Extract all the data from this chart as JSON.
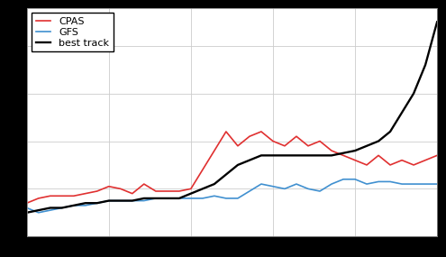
{
  "cpas": [
    7,
    8,
    8.5,
    8.5,
    8.5,
    9,
    9.5,
    10.5,
    10,
    9,
    11,
    9.5,
    9.5,
    9.5,
    10,
    14,
    18,
    22,
    19,
    21,
    22,
    20,
    19,
    21,
    19,
    20,
    18,
    17,
    16,
    15,
    17,
    15,
    16,
    15,
    16,
    17
  ],
  "gfs": [
    6,
    5,
    5.5,
    6,
    6.5,
    6.5,
    7,
    7.5,
    7.5,
    7.5,
    7.5,
    8,
    8,
    8,
    8,
    8,
    8.5,
    8,
    8,
    9.5,
    11,
    10.5,
    10,
    11,
    10,
    9.5,
    11,
    12,
    12,
    11,
    11.5,
    11.5,
    11,
    11,
    11,
    11
  ],
  "best_track": [
    5,
    5.5,
    6,
    6,
    6.5,
    7,
    7,
    7.5,
    7.5,
    7.5,
    8,
    8,
    8,
    8,
    9,
    10,
    11,
    13,
    15,
    16,
    17,
    17,
    17,
    17,
    17,
    17,
    17,
    17.5,
    18,
    19,
    20,
    22,
    26,
    30,
    36,
    45
  ],
  "cpas_color": "#e03030",
  "gfs_color": "#4090d0",
  "best_track_color": "#000000",
  "background_color": "#000000",
  "plot_background_color": "#ffffff",
  "grid_color": "#cccccc",
  "legend_labels": [
    "CPAS",
    "GFS",
    "best track"
  ],
  "linewidth": 1.2,
  "ylim": [
    0,
    48
  ],
  "legend_fontsize": 8
}
